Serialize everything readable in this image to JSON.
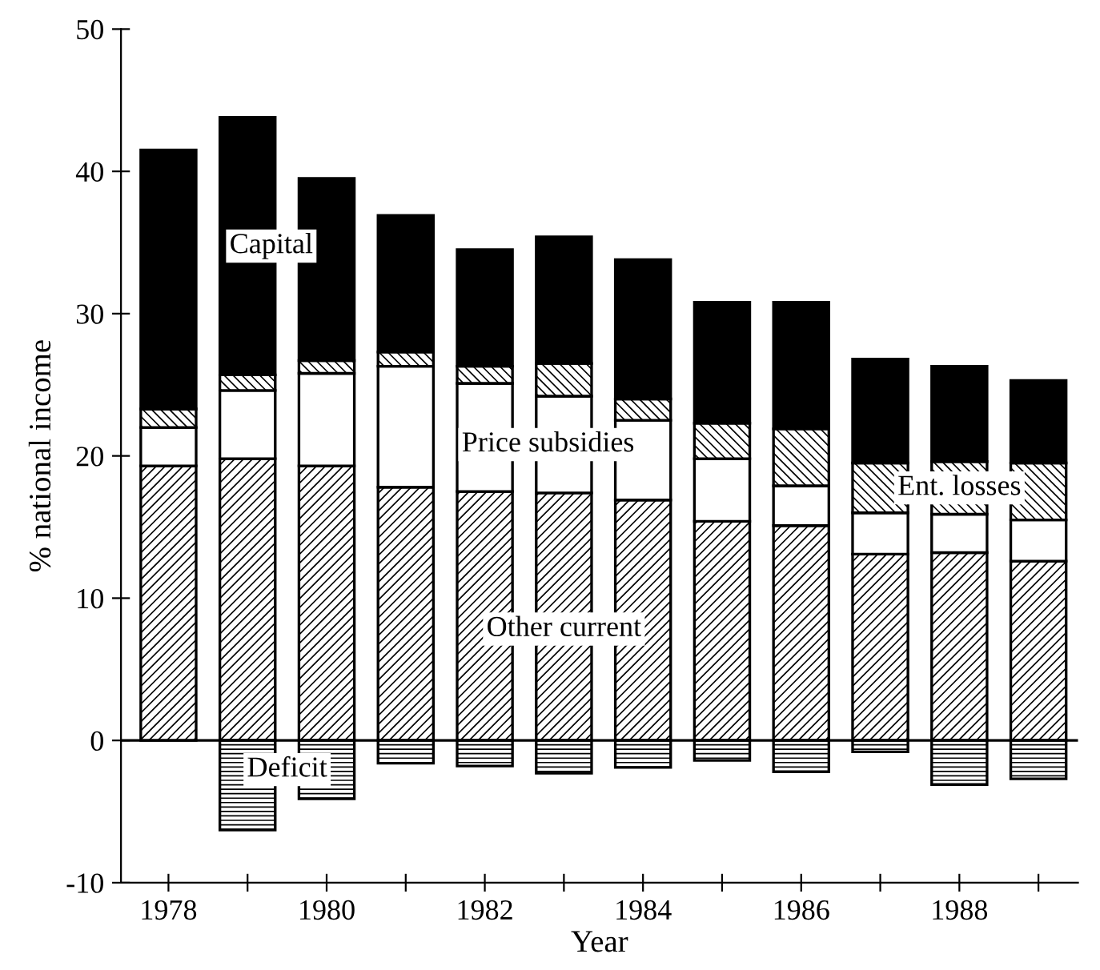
{
  "chart_data": {
    "type": "bar",
    "stacked": true,
    "xlabel": "Year",
    "ylabel": "% national income",
    "categories": [
      "1978",
      null,
      "1980",
      null,
      "1982",
      null,
      "1984",
      null,
      "1986",
      null,
      "1988",
      null
    ],
    "series": [
      {
        "name": "Other current",
        "color": "#000000",
        "values": [
          19.3,
          19.8,
          19.3,
          17.8,
          17.5,
          17.4,
          16.9,
          15.4,
          15.1,
          13.1,
          13.2,
          12.6
        ]
      },
      {
        "name": "Price subsidies",
        "color": "#ffffff",
        "values": [
          2.7,
          4.8,
          6.5,
          8.5,
          7.6,
          6.8,
          5.6,
          4.4,
          2.8,
          2.9,
          2.7,
          2.9
        ]
      },
      {
        "name": "Ent. losses",
        "color": "#000000",
        "values": [
          1.3,
          1.1,
          0.9,
          1.0,
          1.2,
          2.3,
          1.5,
          2.5,
          4.0,
          3.5,
          3.7,
          4.0
        ]
      },
      {
        "name": "Capital",
        "color": "#000000",
        "values": [
          18.2,
          18.1,
          12.8,
          9.6,
          8.2,
          8.9,
          9.8,
          8.5,
          8.9,
          7.3,
          6.7,
          5.8
        ]
      },
      {
        "name": "Deficit",
        "color": "#000000",
        "values": [
          null,
          -6.3,
          -4.1,
          -1.6,
          -1.8,
          -2.3,
          -1.9,
          -1.4,
          -2.2,
          -0.8,
          -3.1,
          -2.7
        ]
      }
    ],
    "ylim": [
      -10,
      50
    ],
    "yticks": [
      -10,
      0,
      10,
      20,
      30,
      40,
      50
    ],
    "ref_lines": [
      {
        "axis": "y",
        "value": 0,
        "color": "#000000"
      }
    ],
    "grid": false,
    "legend": false
  }
}
